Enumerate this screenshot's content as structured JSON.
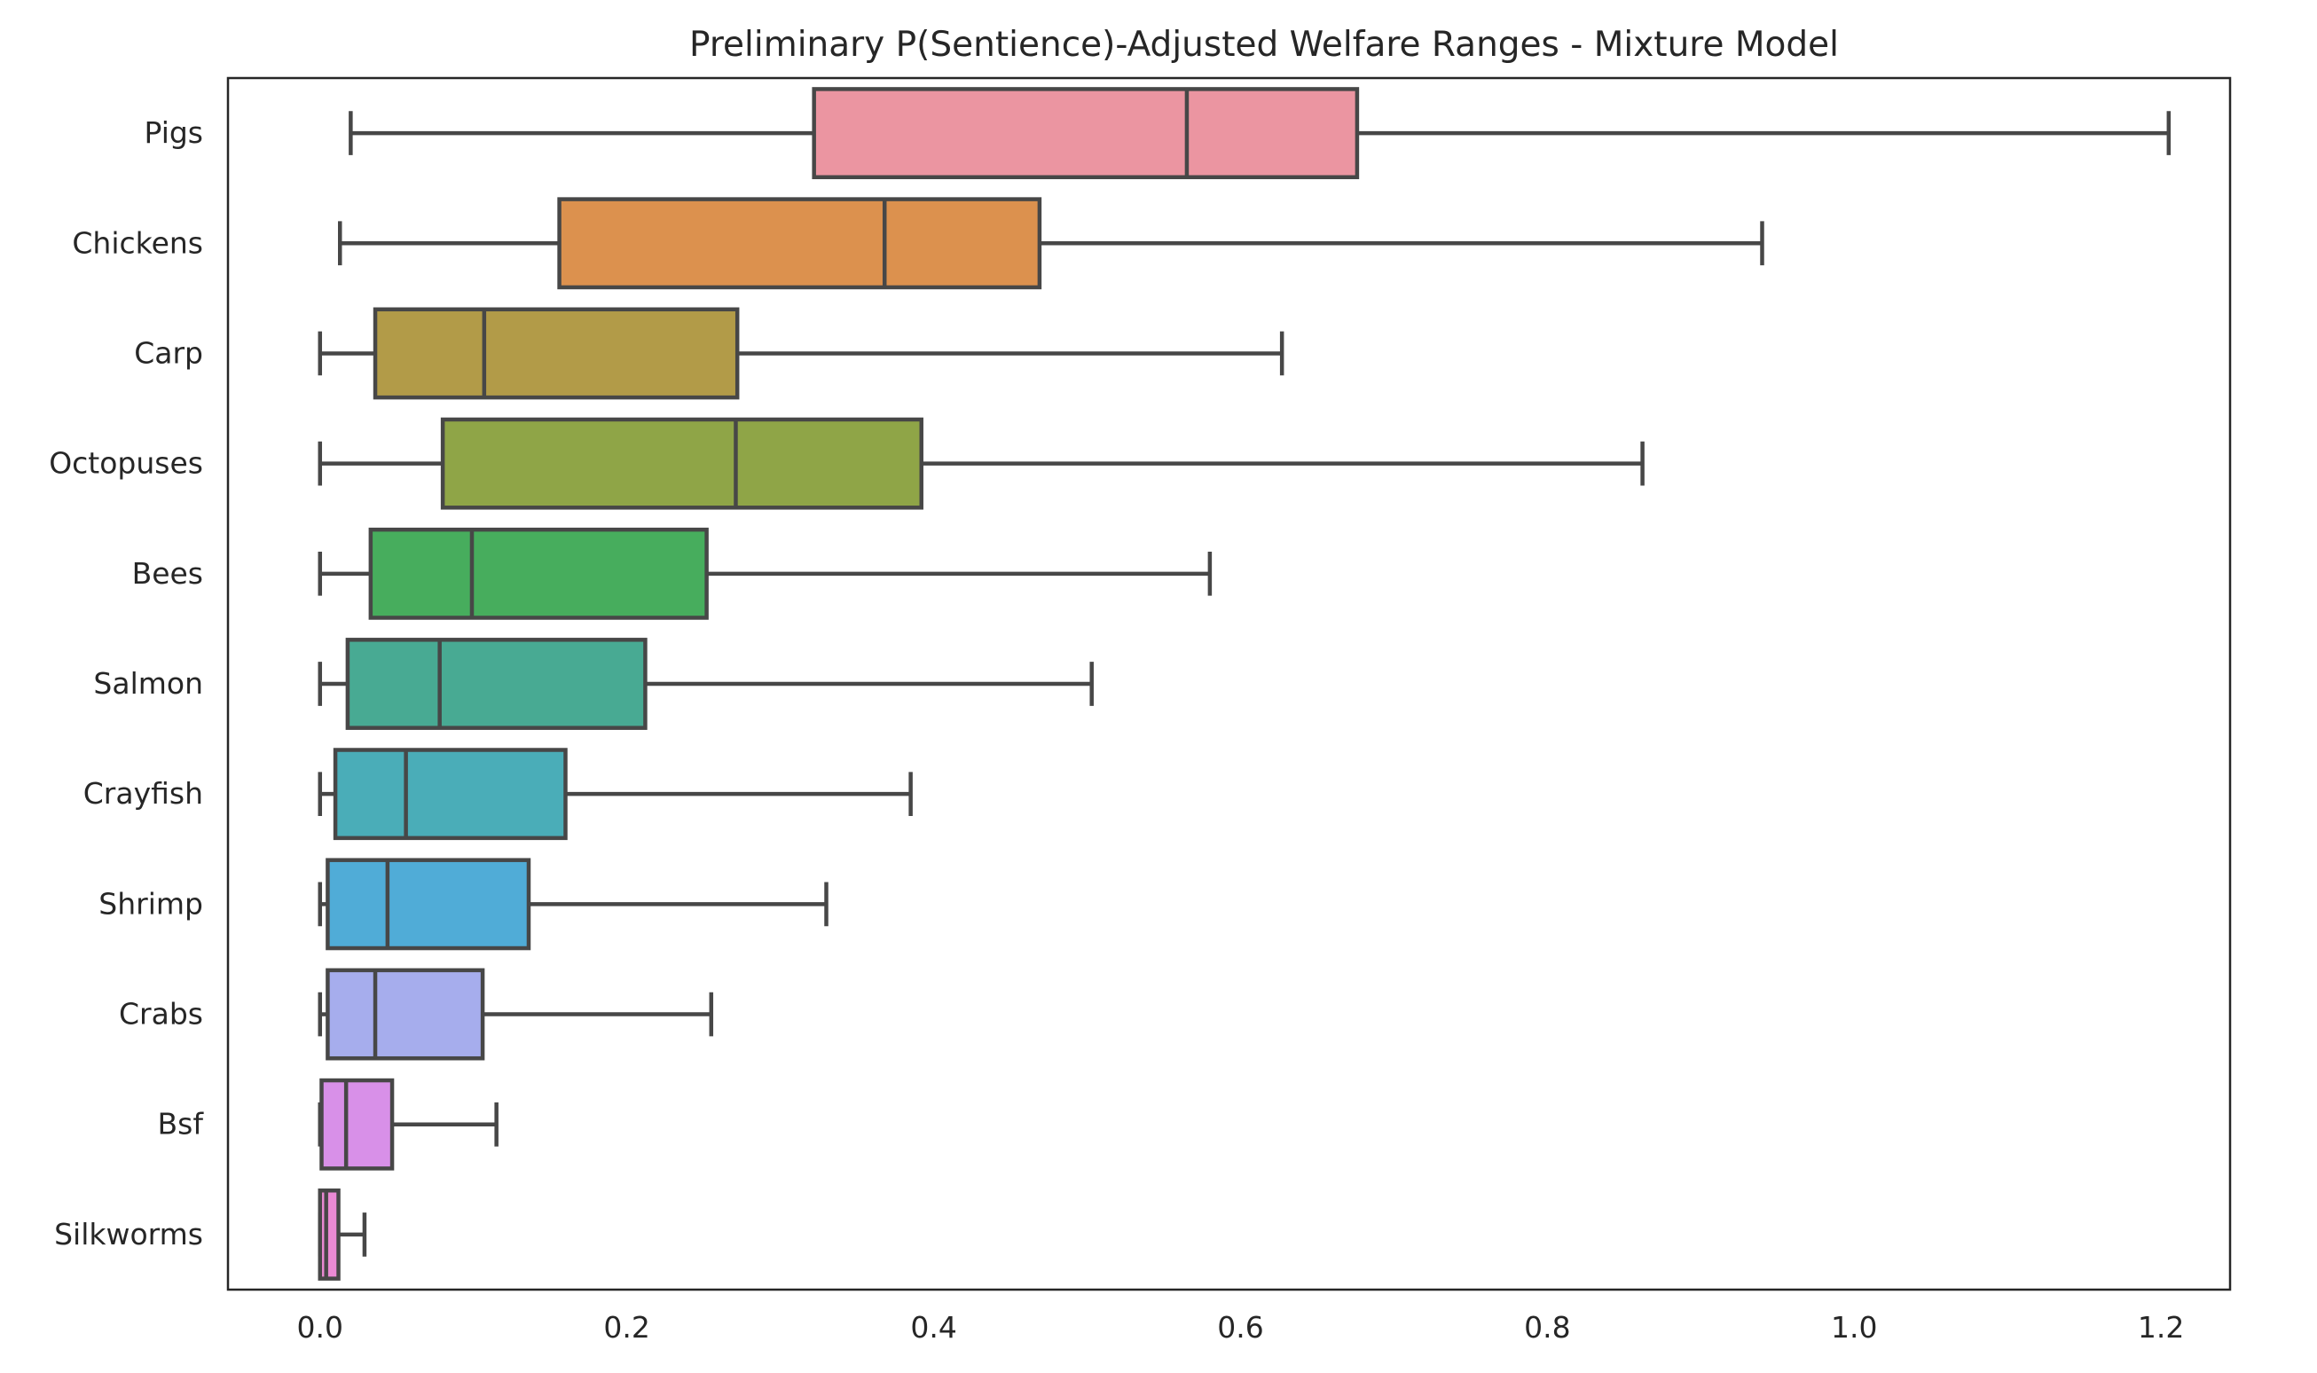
{
  "chart_data": {
    "type": "box",
    "title": "Preliminary P(Sentience)-Adjusted Welfare Ranges - Mixture Model",
    "xlabel": "",
    "ylabel": "",
    "xlim": [
      -0.06,
      1.245
    ],
    "xticks": [
      0.0,
      0.2,
      0.4,
      0.6,
      0.8,
      1.0,
      1.2
    ],
    "xtick_labels": [
      "0.0",
      "0.2",
      "0.4",
      "0.6",
      "0.8",
      "1.0",
      "1.2"
    ],
    "grid": false,
    "orientation": "horizontal",
    "categories": [
      "Pigs",
      "Chickens",
      "Carp",
      "Octopuses",
      "Bees",
      "Salmon",
      "Crayfish",
      "Shrimp",
      "Crabs",
      "Bsf",
      "Silkworms"
    ],
    "boxes": [
      {
        "label": "Pigs",
        "whisker_low": 0.02,
        "q1": 0.322,
        "median": 0.565,
        "q3": 0.676,
        "whisker_high": 1.205,
        "color": "#eb95a1"
      },
      {
        "label": "Chickens",
        "whisker_low": 0.013,
        "q1": 0.156,
        "median": 0.368,
        "q3": 0.469,
        "whisker_high": 0.94,
        "color": "#dc914e"
      },
      {
        "label": "Carp",
        "whisker_low": 0.0,
        "q1": 0.036,
        "median": 0.107,
        "q3": 0.272,
        "whisker_high": 0.627,
        "color": "#b29b48"
      },
      {
        "label": "Octopuses",
        "whisker_low": 0.0,
        "q1": 0.08,
        "median": 0.271,
        "q3": 0.392,
        "whisker_high": 0.862,
        "color": "#8fa547"
      },
      {
        "label": "Bees",
        "whisker_low": 0.0,
        "q1": 0.033,
        "median": 0.099,
        "q3": 0.252,
        "whisker_high": 0.58,
        "color": "#47ad5d"
      },
      {
        "label": "Salmon",
        "whisker_low": 0.0,
        "q1": 0.018,
        "median": 0.078,
        "q3": 0.212,
        "whisker_high": 0.503,
        "color": "#48aa93"
      },
      {
        "label": "Crayfish",
        "whisker_low": 0.0,
        "q1": 0.01,
        "median": 0.056,
        "q3": 0.16,
        "whisker_high": 0.385,
        "color": "#4aadb8"
      },
      {
        "label": "Shrimp",
        "whisker_low": 0.0,
        "q1": 0.005,
        "median": 0.044,
        "q3": 0.136,
        "whisker_high": 0.33,
        "color": "#50acd7"
      },
      {
        "label": "Crabs",
        "whisker_low": 0.0,
        "q1": 0.005,
        "median": 0.036,
        "q3": 0.106,
        "whisker_high": 0.255,
        "color": "#a6aded"
      },
      {
        "label": "Bsf",
        "whisker_low": 0.0,
        "q1": 0.001,
        "median": 0.017,
        "q3": 0.047,
        "whisker_high": 0.115,
        "color": "#d890e8"
      },
      {
        "label": "Silkworms",
        "whisker_low": 0.0,
        "q1": 0.0,
        "median": 0.004,
        "q3": 0.012,
        "whisker_high": 0.029,
        "color": "#ea8ad3"
      }
    ],
    "line_color": "#474747",
    "axis_color": "#262626"
  }
}
